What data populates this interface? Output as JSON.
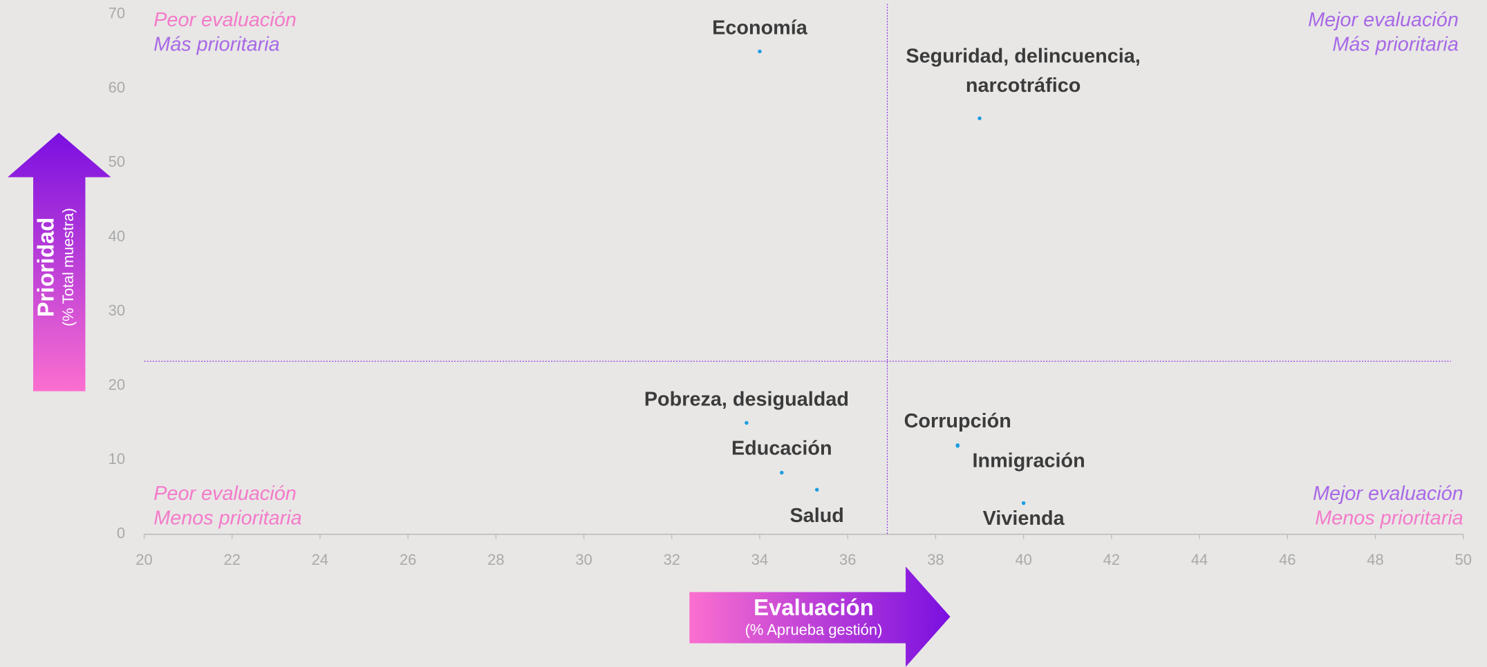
{
  "chart_data": {
    "type": "scatter",
    "categories": [
      "Economía",
      "Seguridad, delincuencia, narcotráfico",
      "Pobreza, desigualdad",
      "Educación",
      "Salud",
      "Corrupción",
      "Inmigración",
      "Vivienda"
    ],
    "x": [
      34.0,
      39.0,
      33.7,
      34.5,
      35.3,
      38.5,
      38.5,
      40.0
    ],
    "values": [
      65,
      56,
      15,
      8.3,
      6,
      12,
      11.9,
      4.2
    ],
    "color": "#1a9ee0",
    "xlim": [
      20,
      50
    ],
    "xticks": [
      20,
      22,
      24,
      26,
      28,
      30,
      32,
      34,
      36,
      38,
      40,
      42,
      44,
      46,
      48,
      50
    ],
    "ylim": [
      0,
      70
    ],
    "yticks": [
      0,
      10,
      20,
      30,
      40,
      50,
      60,
      70
    ],
    "grid": false,
    "reference_x": 36.9,
    "reference_y": 23.3,
    "x_label": "Evaluación",
    "x_sublabel": "(% Aprueba gestión)",
    "y_label": "Prioridad",
    "y_sublabel": "(% Total muestra)",
    "quadrant_labels": {
      "top_left": [
        "Peor evaluación",
        "Más prioritaria"
      ],
      "top_right": [
        "Mejor evaluación",
        "Más prioritaria"
      ],
      "bottom_left": [
        "Peor evaluación",
        "Menos prioritaria"
      ],
      "bottom_right": [
        "Mejor evaluación",
        "Menos prioritaria"
      ]
    }
  }
}
